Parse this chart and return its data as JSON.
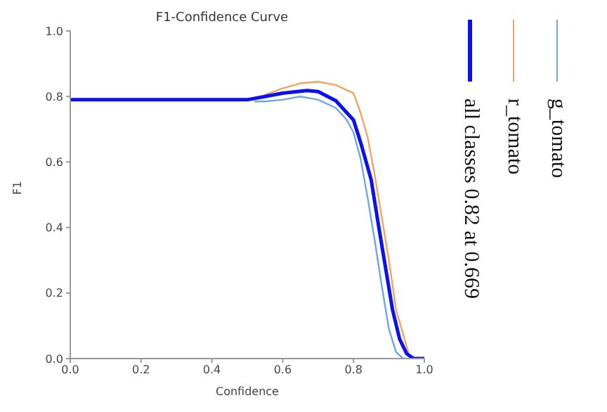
{
  "chart_data": {
    "type": "line",
    "title": "F1-Confidence Curve",
    "xlabel": "Confidence",
    "ylabel": "F1",
    "xlim": [
      0,
      1
    ],
    "ylim": [
      0,
      1
    ],
    "xticks": [
      {
        "value": 0,
        "label": "0.0"
      },
      0.2,
      0.4,
      0.6,
      0.8,
      {
        "value": 1,
        "label": "1.0"
      }
    ],
    "yticks": [
      {
        "value": 0,
        "label": "0.0"
      },
      0.2,
      0.4,
      0.6,
      0.8,
      {
        "value": 1,
        "label": "1.0"
      }
    ],
    "grid": false,
    "legend": "right",
    "marker": "none",
    "line_style": "solid",
    "series": [
      {
        "name": "g_tomato",
        "color": "#6fa8dc",
        "x": [
          0.52,
          0.55,
          0.6,
          0.65,
          0.7,
          0.75,
          0.78,
          0.8,
          0.82,
          0.84,
          0.86,
          0.88,
          0.9,
          0.92,
          0.94,
          0.97,
          1.0
        ],
        "values": [
          0.785,
          0.785,
          0.79,
          0.8,
          0.79,
          0.765,
          0.73,
          0.69,
          0.61,
          0.49,
          0.36,
          0.22,
          0.09,
          0.02,
          0,
          0,
          0
        ]
      },
      {
        "name": "r_tomato",
        "color": "#f4a460",
        "x": [
          0.55,
          0.6,
          0.65,
          0.7,
          0.75,
          0.8,
          0.82,
          0.84,
          0.86,
          0.88,
          0.9,
          0.92,
          0.96,
          1.0
        ],
        "values": [
          0.805,
          0.825,
          0.84,
          0.845,
          0.835,
          0.81,
          0.75,
          0.675,
          0.56,
          0.43,
          0.3,
          0.15,
          0,
          0
        ]
      },
      {
        "name": "all classes  0.82  at  0.669",
        "color": "#0a10f0",
        "x": [
          0,
          0.1,
          0.2,
          0.3,
          0.4,
          0.5,
          0.55,
          0.6,
          0.669,
          0.7,
          0.75,
          0.8,
          0.82,
          0.85,
          0.87,
          0.89,
          0.91,
          0.93,
          0.95,
          0.97,
          1.0
        ],
        "values": [
          0.79,
          0.79,
          0.79,
          0.79,
          0.79,
          0.79,
          0.8,
          0.81,
          0.818,
          0.815,
          0.787,
          0.728,
          0.66,
          0.545,
          0.41,
          0.28,
          0.15,
          0.06,
          0.015,
          0,
          0
        ]
      }
    ]
  }
}
